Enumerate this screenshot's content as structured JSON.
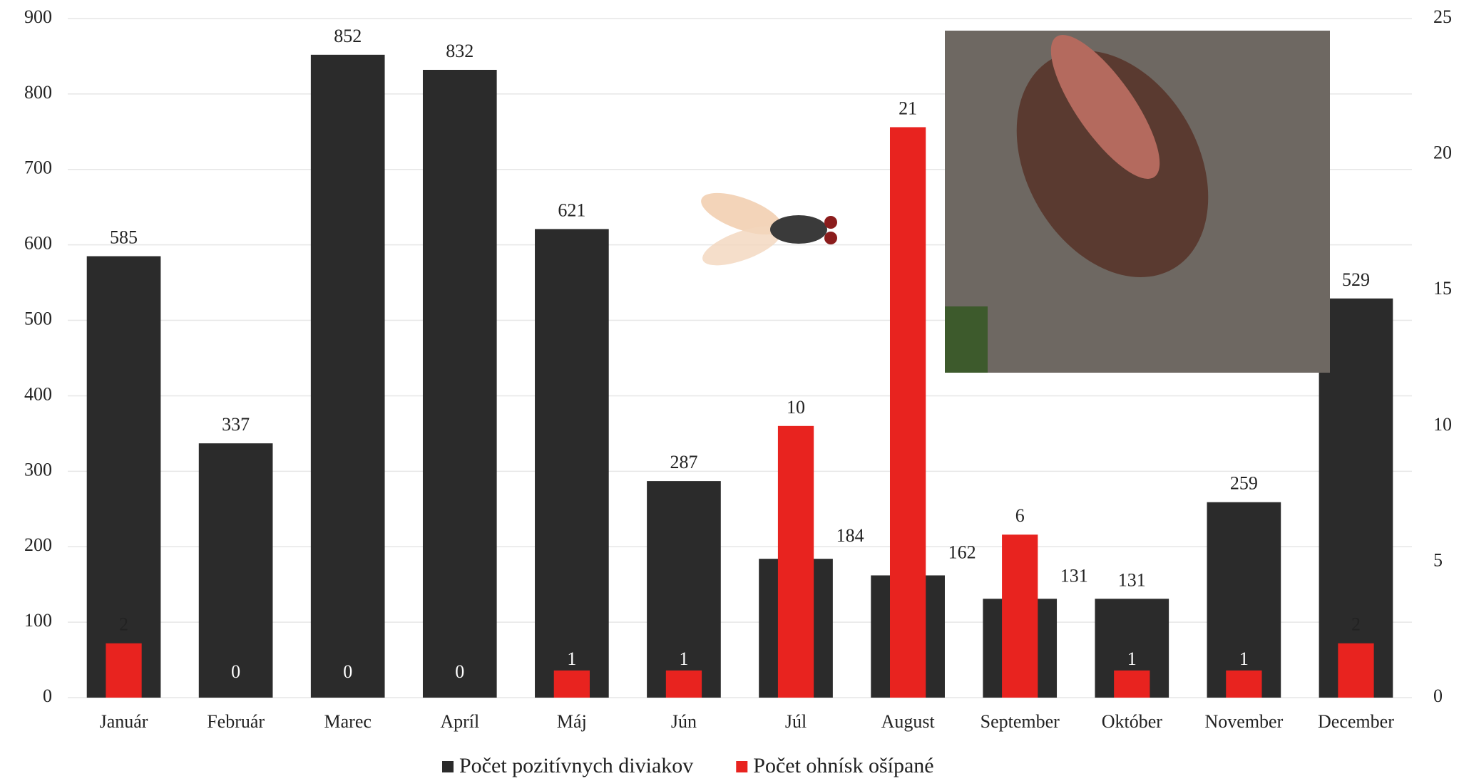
{
  "chart_data": {
    "type": "bar",
    "categories": [
      "Január",
      "Február",
      "Marec",
      "Apríl",
      "Máj",
      "Jún",
      "Júl",
      "August",
      "September",
      "Október",
      "November",
      "December"
    ],
    "series": [
      {
        "name": "Počet pozitívnych diviakov",
        "color": "#2b2b2b",
        "values": [
          585,
          337,
          852,
          832,
          621,
          287,
          184,
          162,
          131,
          131,
          259,
          529
        ]
      },
      {
        "name": "Počet ohnísk ošípané",
        "color": "#e8231f",
        "axis": "y2",
        "values": [
          2,
          0,
          0,
          0,
          1,
          1,
          10,
          21,
          6,
          1,
          1,
          2
        ]
      }
    ],
    "ylim": [
      0,
      900
    ],
    "yticks": [
      0,
      100,
      200,
      300,
      400,
      500,
      600,
      700,
      800,
      900
    ],
    "y2lim": [
      0,
      25
    ],
    "y2ticks": [
      0,
      5,
      10,
      15,
      20,
      25
    ],
    "grid": true,
    "legend": "bottom"
  }
}
